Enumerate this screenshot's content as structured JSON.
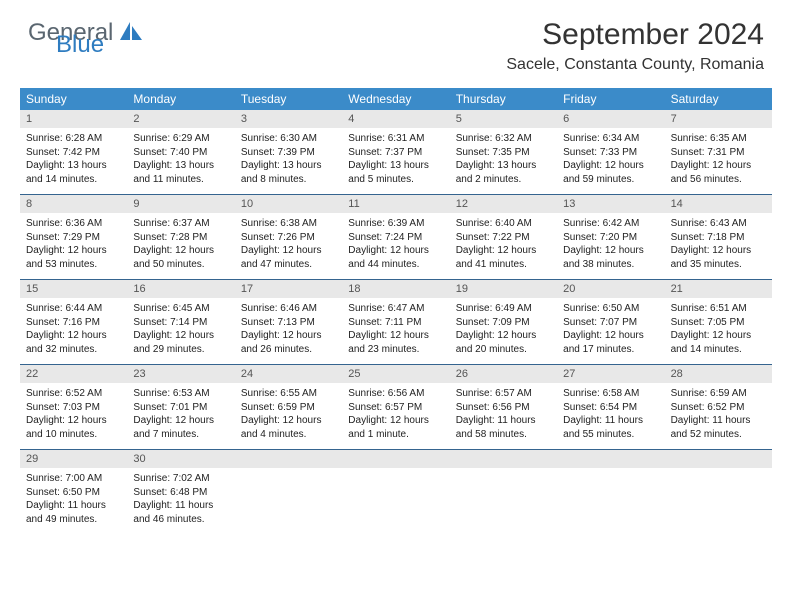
{
  "brand": {
    "part1": "General",
    "part2": "Blue"
  },
  "title": "September 2024",
  "location": "Sacele, Constanta County, Romania",
  "header_bg": "#3b8bc9",
  "daynum_bg": "#e8e8e8",
  "border_color": "#35648f",
  "weekdays": [
    "Sunday",
    "Monday",
    "Tuesday",
    "Wednesday",
    "Thursday",
    "Friday",
    "Saturday"
  ],
  "weeks": [
    {
      "nums": [
        "1",
        "2",
        "3",
        "4",
        "5",
        "6",
        "7"
      ],
      "cells": [
        {
          "sunrise": "Sunrise: 6:28 AM",
          "sunset": "Sunset: 7:42 PM",
          "day1": "Daylight: 13 hours",
          "day2": "and 14 minutes."
        },
        {
          "sunrise": "Sunrise: 6:29 AM",
          "sunset": "Sunset: 7:40 PM",
          "day1": "Daylight: 13 hours",
          "day2": "and 11 minutes."
        },
        {
          "sunrise": "Sunrise: 6:30 AM",
          "sunset": "Sunset: 7:39 PM",
          "day1": "Daylight: 13 hours",
          "day2": "and 8 minutes."
        },
        {
          "sunrise": "Sunrise: 6:31 AM",
          "sunset": "Sunset: 7:37 PM",
          "day1": "Daylight: 13 hours",
          "day2": "and 5 minutes."
        },
        {
          "sunrise": "Sunrise: 6:32 AM",
          "sunset": "Sunset: 7:35 PM",
          "day1": "Daylight: 13 hours",
          "day2": "and 2 minutes."
        },
        {
          "sunrise": "Sunrise: 6:34 AM",
          "sunset": "Sunset: 7:33 PM",
          "day1": "Daylight: 12 hours",
          "day2": "and 59 minutes."
        },
        {
          "sunrise": "Sunrise: 6:35 AM",
          "sunset": "Sunset: 7:31 PM",
          "day1": "Daylight: 12 hours",
          "day2": "and 56 minutes."
        }
      ]
    },
    {
      "nums": [
        "8",
        "9",
        "10",
        "11",
        "12",
        "13",
        "14"
      ],
      "cells": [
        {
          "sunrise": "Sunrise: 6:36 AM",
          "sunset": "Sunset: 7:29 PM",
          "day1": "Daylight: 12 hours",
          "day2": "and 53 minutes."
        },
        {
          "sunrise": "Sunrise: 6:37 AM",
          "sunset": "Sunset: 7:28 PM",
          "day1": "Daylight: 12 hours",
          "day2": "and 50 minutes."
        },
        {
          "sunrise": "Sunrise: 6:38 AM",
          "sunset": "Sunset: 7:26 PM",
          "day1": "Daylight: 12 hours",
          "day2": "and 47 minutes."
        },
        {
          "sunrise": "Sunrise: 6:39 AM",
          "sunset": "Sunset: 7:24 PM",
          "day1": "Daylight: 12 hours",
          "day2": "and 44 minutes."
        },
        {
          "sunrise": "Sunrise: 6:40 AM",
          "sunset": "Sunset: 7:22 PM",
          "day1": "Daylight: 12 hours",
          "day2": "and 41 minutes."
        },
        {
          "sunrise": "Sunrise: 6:42 AM",
          "sunset": "Sunset: 7:20 PM",
          "day1": "Daylight: 12 hours",
          "day2": "and 38 minutes."
        },
        {
          "sunrise": "Sunrise: 6:43 AM",
          "sunset": "Sunset: 7:18 PM",
          "day1": "Daylight: 12 hours",
          "day2": "and 35 minutes."
        }
      ]
    },
    {
      "nums": [
        "15",
        "16",
        "17",
        "18",
        "19",
        "20",
        "21"
      ],
      "cells": [
        {
          "sunrise": "Sunrise: 6:44 AM",
          "sunset": "Sunset: 7:16 PM",
          "day1": "Daylight: 12 hours",
          "day2": "and 32 minutes."
        },
        {
          "sunrise": "Sunrise: 6:45 AM",
          "sunset": "Sunset: 7:14 PM",
          "day1": "Daylight: 12 hours",
          "day2": "and 29 minutes."
        },
        {
          "sunrise": "Sunrise: 6:46 AM",
          "sunset": "Sunset: 7:13 PM",
          "day1": "Daylight: 12 hours",
          "day2": "and 26 minutes."
        },
        {
          "sunrise": "Sunrise: 6:47 AM",
          "sunset": "Sunset: 7:11 PM",
          "day1": "Daylight: 12 hours",
          "day2": "and 23 minutes."
        },
        {
          "sunrise": "Sunrise: 6:49 AM",
          "sunset": "Sunset: 7:09 PM",
          "day1": "Daylight: 12 hours",
          "day2": "and 20 minutes."
        },
        {
          "sunrise": "Sunrise: 6:50 AM",
          "sunset": "Sunset: 7:07 PM",
          "day1": "Daylight: 12 hours",
          "day2": "and 17 minutes."
        },
        {
          "sunrise": "Sunrise: 6:51 AM",
          "sunset": "Sunset: 7:05 PM",
          "day1": "Daylight: 12 hours",
          "day2": "and 14 minutes."
        }
      ]
    },
    {
      "nums": [
        "22",
        "23",
        "24",
        "25",
        "26",
        "27",
        "28"
      ],
      "cells": [
        {
          "sunrise": "Sunrise: 6:52 AM",
          "sunset": "Sunset: 7:03 PM",
          "day1": "Daylight: 12 hours",
          "day2": "and 10 minutes."
        },
        {
          "sunrise": "Sunrise: 6:53 AM",
          "sunset": "Sunset: 7:01 PM",
          "day1": "Daylight: 12 hours",
          "day2": "and 7 minutes."
        },
        {
          "sunrise": "Sunrise: 6:55 AM",
          "sunset": "Sunset: 6:59 PM",
          "day1": "Daylight: 12 hours",
          "day2": "and 4 minutes."
        },
        {
          "sunrise": "Sunrise: 6:56 AM",
          "sunset": "Sunset: 6:57 PM",
          "day1": "Daylight: 12 hours",
          "day2": "and 1 minute."
        },
        {
          "sunrise": "Sunrise: 6:57 AM",
          "sunset": "Sunset: 6:56 PM",
          "day1": "Daylight: 11 hours",
          "day2": "and 58 minutes."
        },
        {
          "sunrise": "Sunrise: 6:58 AM",
          "sunset": "Sunset: 6:54 PM",
          "day1": "Daylight: 11 hours",
          "day2": "and 55 minutes."
        },
        {
          "sunrise": "Sunrise: 6:59 AM",
          "sunset": "Sunset: 6:52 PM",
          "day1": "Daylight: 11 hours",
          "day2": "and 52 minutes."
        }
      ]
    },
    {
      "nums": [
        "29",
        "30",
        "",
        "",
        "",
        "",
        ""
      ],
      "cells": [
        {
          "sunrise": "Sunrise: 7:00 AM",
          "sunset": "Sunset: 6:50 PM",
          "day1": "Daylight: 11 hours",
          "day2": "and 49 minutes."
        },
        {
          "sunrise": "Sunrise: 7:02 AM",
          "sunset": "Sunset: 6:48 PM",
          "day1": "Daylight: 11 hours",
          "day2": "and 46 minutes."
        },
        null,
        null,
        null,
        null,
        null
      ]
    }
  ]
}
